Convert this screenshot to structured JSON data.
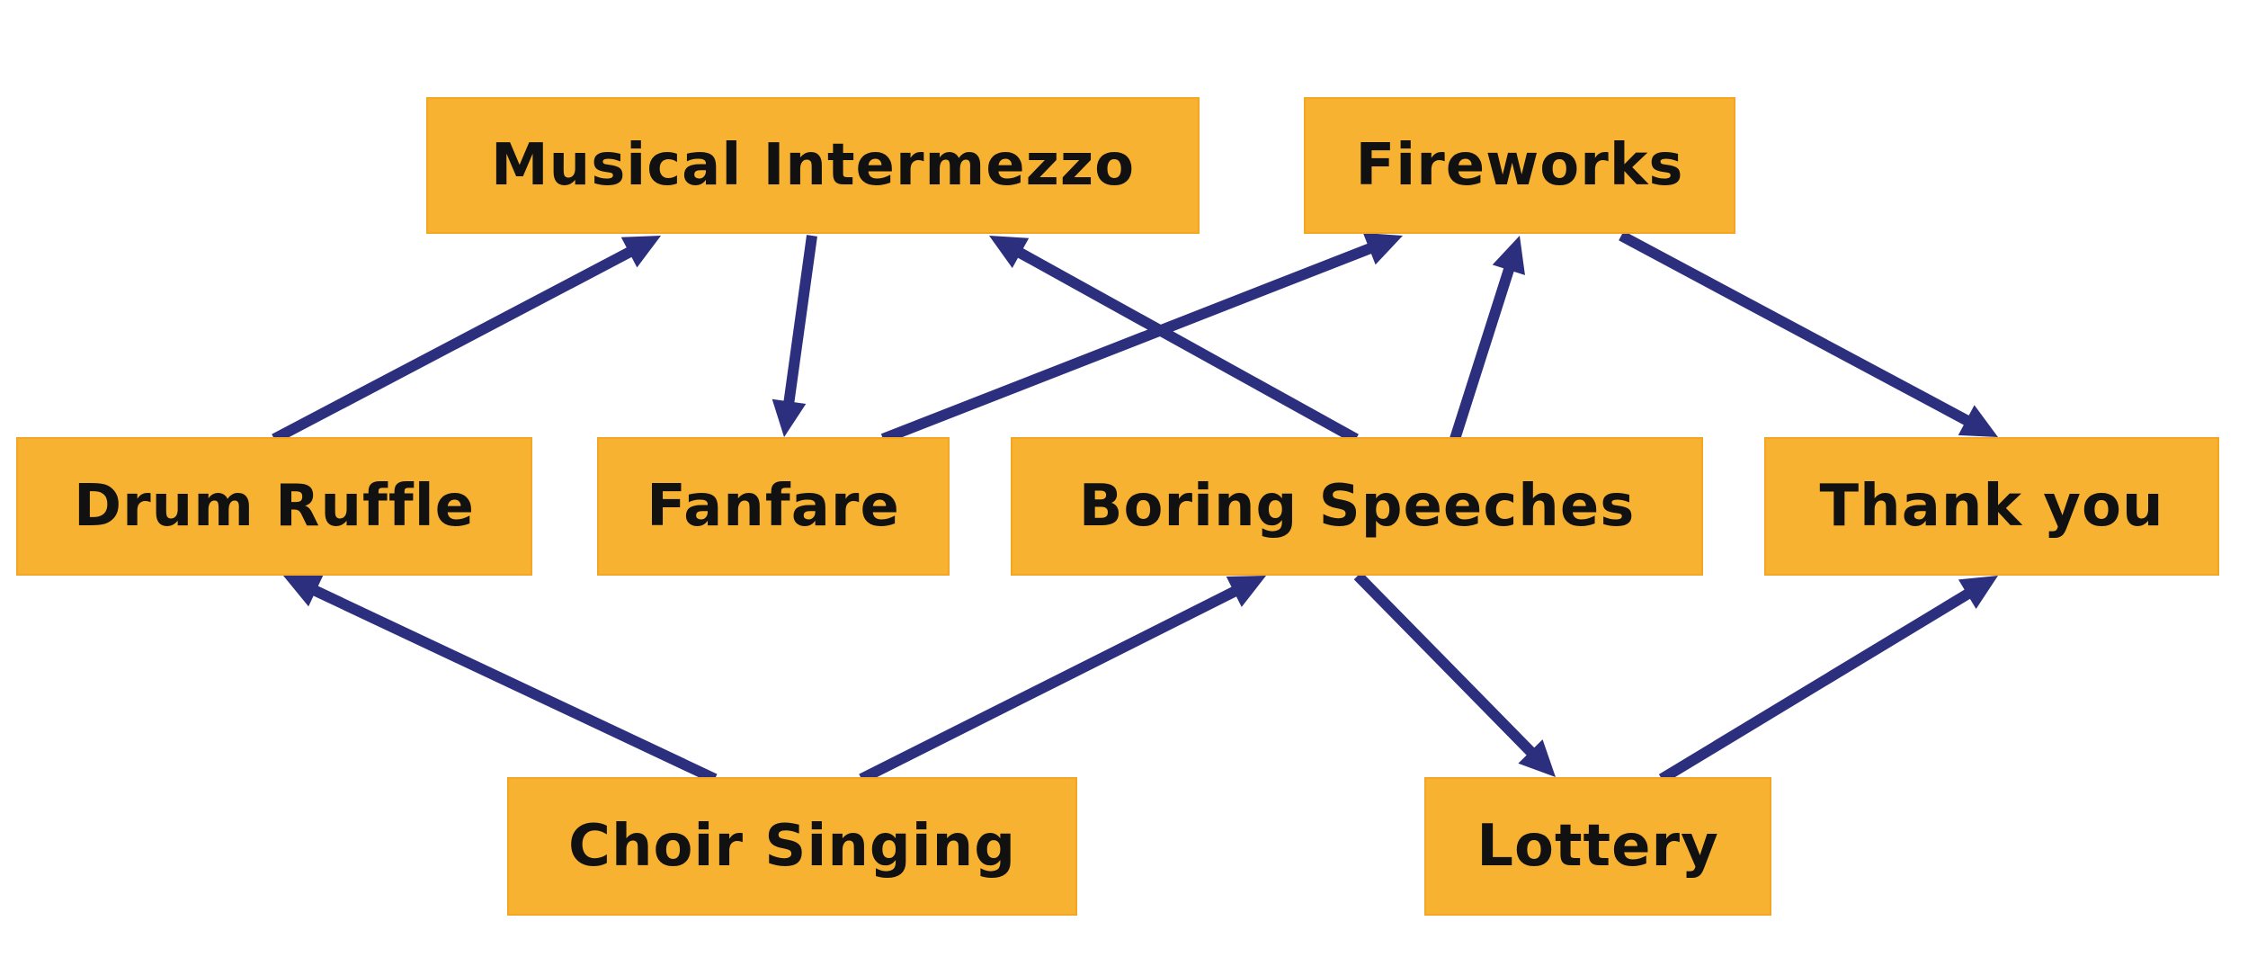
{
  "colors": {
    "node_fill": "#f8b232",
    "arrow": "#2b2f7d",
    "text": "#111111",
    "background": "#ffffff"
  },
  "nodes": {
    "musical_intermezzo": "Musical Intermezzo",
    "fireworks": "Fireworks",
    "drum_ruffle": "Drum Ruffle",
    "fanfare": "Fanfare",
    "boring_speeches": "Boring Speeches",
    "thank_you": "Thank you",
    "choir_singing": "Choir Singing",
    "lottery": "Lottery"
  },
  "edges": [
    {
      "from": "drum_ruffle",
      "to": "musical_intermezzo"
    },
    {
      "from": "musical_intermezzo",
      "to": "fanfare"
    },
    {
      "from": "boring_speeches",
      "to": "musical_intermezzo"
    },
    {
      "from": "fanfare",
      "to": "fireworks"
    },
    {
      "from": "boring_speeches",
      "to": "fireworks"
    },
    {
      "from": "fireworks",
      "to": "thank_you"
    },
    {
      "from": "choir_singing",
      "to": "drum_ruffle"
    },
    {
      "from": "choir_singing",
      "to": "boring_speeches"
    },
    {
      "from": "boring_speeches",
      "to": "lottery"
    },
    {
      "from": "lottery",
      "to": "thank_you"
    }
  ]
}
